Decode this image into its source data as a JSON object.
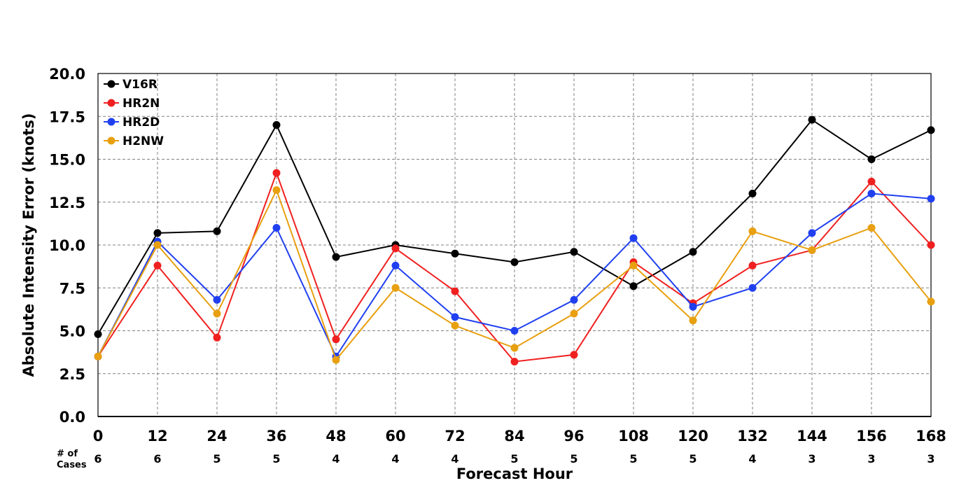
{
  "chart_data": {
    "type": "line",
    "xlabel": "Forecast Hour",
    "ylabel": "Absolute Intensity Error (knots)",
    "cases_label": [
      "# of",
      "Cases"
    ],
    "x": [
      0,
      12,
      24,
      36,
      48,
      60,
      72,
      84,
      96,
      108,
      120,
      132,
      144,
      156,
      168
    ],
    "cases": [
      6,
      6,
      5,
      5,
      4,
      4,
      4,
      5,
      5,
      5,
      5,
      4,
      3,
      3,
      3
    ],
    "xlim": [
      0,
      168
    ],
    "ylim": [
      0,
      20
    ],
    "yticks": [
      0.0,
      2.5,
      5.0,
      7.5,
      10.0,
      12.5,
      15.0,
      17.5,
      20.0
    ],
    "grid": true,
    "legend_position": "top-left",
    "series": [
      {
        "name": "V16R",
        "color": "#000000",
        "values": [
          4.8,
          10.7,
          10.8,
          17.0,
          9.3,
          10.0,
          9.5,
          9.0,
          9.6,
          7.6,
          9.6,
          13.0,
          17.3,
          15.0,
          16.7
        ]
      },
      {
        "name": "HR2N",
        "color": "#f02020",
        "values": [
          3.5,
          8.8,
          4.6,
          14.2,
          4.5,
          9.8,
          7.3,
          3.2,
          3.6,
          9.0,
          6.6,
          8.8,
          9.7,
          13.7,
          10.0
        ]
      },
      {
        "name": "HR2D",
        "color": "#2040f0",
        "values": [
          3.5,
          10.2,
          6.8,
          11.0,
          3.5,
          8.8,
          5.8,
          5.0,
          6.8,
          10.4,
          6.4,
          7.5,
          10.7,
          13.0,
          12.7
        ]
      },
      {
        "name": "H2NW",
        "color": "#e8a010",
        "values": [
          3.5,
          10.0,
          6.0,
          13.2,
          3.3,
          7.5,
          5.3,
          4.0,
          6.0,
          8.8,
          5.6,
          10.8,
          9.7,
          11.0,
          6.7
        ]
      }
    ]
  }
}
